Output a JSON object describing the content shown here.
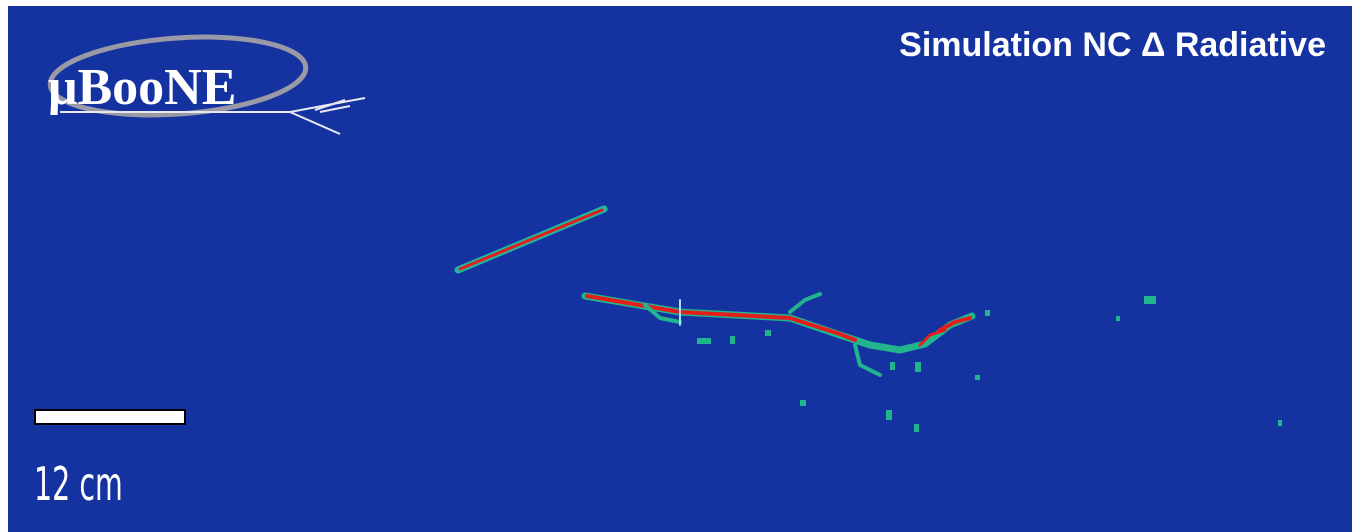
{
  "title": "Simulation NC Δ Radiative",
  "logo": "μBooNE",
  "scale_bar": {
    "label": "12 cm"
  }
}
